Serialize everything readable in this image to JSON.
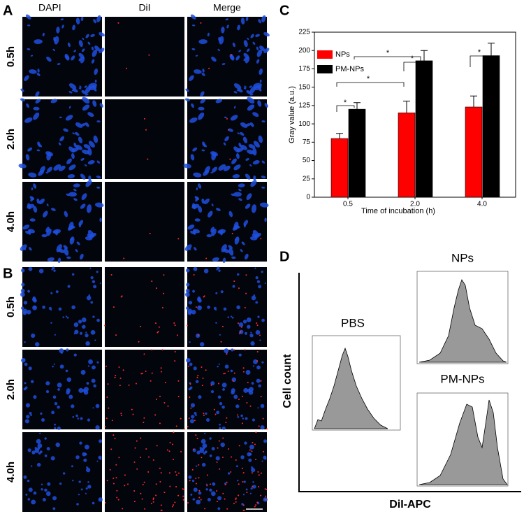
{
  "panels": {
    "a": {
      "label": "A",
      "columns": [
        "DAPI",
        "DiI",
        "Merge"
      ],
      "rows": [
        "0.5h",
        "2.0h",
        "4.0h"
      ]
    },
    "b": {
      "label": "B",
      "rows": [
        "0.5h",
        "2.0h",
        "4.0h"
      ]
    },
    "c": {
      "label": "C"
    },
    "d": {
      "label": "D",
      "plots": [
        "PBS",
        "NPs",
        "PM-NPs"
      ],
      "y_label": "Cell count",
      "x_label": "DiI-APC"
    }
  },
  "chart_data": {
    "type": "bar",
    "x_label": "Time of incubation (h)",
    "y_label": "Gray value (a.u.)",
    "categories": [
      "0.5",
      "2.0",
      "4.0"
    ],
    "series": [
      {
        "name": "NPs",
        "color": "#ff0000",
        "values": [
          80,
          115,
          123
        ],
        "errors": [
          7,
          16,
          15
        ]
      },
      {
        "name": "PM-NPs",
        "color": "#000000",
        "values": [
          120,
          186,
          193
        ],
        "errors": [
          9,
          14,
          17
        ]
      }
    ],
    "ylim": [
      0,
      225
    ],
    "yticks": [
      0,
      25,
      50,
      75,
      100,
      125,
      150,
      175,
      200,
      225
    ],
    "legend": "upper-left",
    "significance": [
      "*",
      "*",
      "*",
      "*",
      "*"
    ]
  }
}
